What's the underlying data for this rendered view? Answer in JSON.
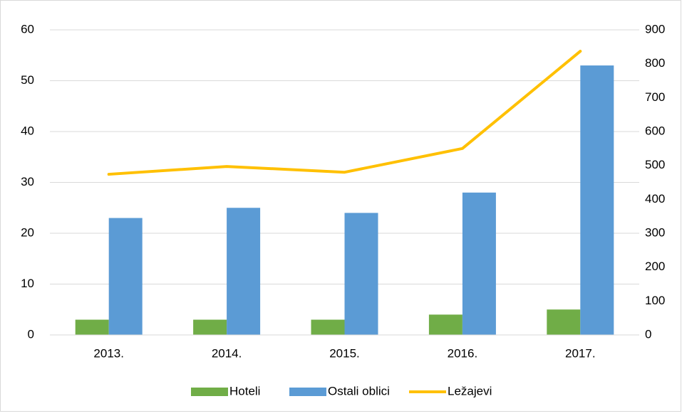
{
  "chart_data": {
    "type": "bar",
    "categories": [
      "2013.",
      "2014.",
      "2015.",
      "2016.",
      "2017."
    ],
    "series": [
      {
        "name": "Hoteli",
        "color": "#70ad47",
        "values": [
          3,
          3,
          3,
          4,
          5
        ]
      },
      {
        "name": "Ostali oblici",
        "color": "#5b9bd5",
        "values": [
          23,
          25,
          24,
          28,
          53
        ]
      },
      {
        "name": "Ležajevi",
        "color": "#ffc000",
        "type": "line",
        "axis": "y2",
        "values": [
          474,
          497,
          480,
          550,
          837
        ]
      }
    ],
    "ylim": [
      0,
      60
    ],
    "yticks": [
      0,
      10,
      20,
      30,
      40,
      50,
      60
    ],
    "y2lim": [
      0,
      900
    ],
    "y2ticks": [
      0,
      100,
      200,
      300,
      400,
      500,
      600,
      700,
      800,
      900
    ],
    "grid": true,
    "legend": "bottom"
  }
}
